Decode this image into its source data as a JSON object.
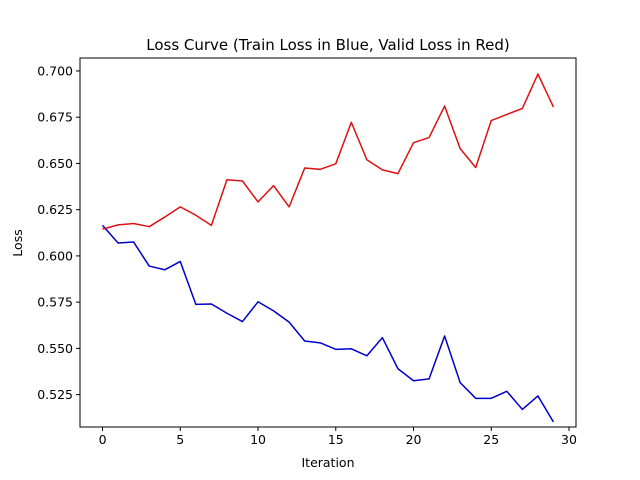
{
  "chart_data": {
    "type": "line",
    "title": "Loss Curve (Train Loss in Blue, Valid Loss in Red)",
    "xlabel": "Iteration",
    "ylabel": "Loss",
    "xlim": [
      -1.45,
      30.45
    ],
    "ylim": [
      0.5075,
      0.707
    ],
    "xticks": [
      0,
      5,
      10,
      15,
      20,
      25,
      30
    ],
    "yticks": [
      0.525,
      0.55,
      0.575,
      0.6,
      0.625,
      0.65,
      0.675,
      0.7
    ],
    "xtick_labels": [
      "0",
      "5",
      "10",
      "15",
      "20",
      "25",
      "30"
    ],
    "ytick_labels": [
      "0.525",
      "0.550",
      "0.575",
      "0.600",
      "0.625",
      "0.650",
      "0.675",
      "0.700"
    ],
    "grid": false,
    "x": [
      0,
      1,
      2,
      3,
      4,
      5,
      6,
      7,
      8,
      9,
      10,
      11,
      12,
      13,
      14,
      15,
      16,
      17,
      18,
      19,
      20,
      21,
      22,
      23,
      24,
      25,
      26,
      27,
      28,
      29
    ],
    "series": [
      {
        "name": "Train Loss",
        "color": "#0000cc",
        "values": [
          0.6165,
          0.607,
          0.6075,
          0.5945,
          0.5925,
          0.597,
          0.5738,
          0.574,
          0.569,
          0.5645,
          0.5752,
          0.5703,
          0.5642,
          0.554,
          0.553,
          0.5495,
          0.5498,
          0.546,
          0.5558,
          0.539,
          0.5325,
          0.5335,
          0.5567,
          0.5315,
          0.523,
          0.523,
          0.5268,
          0.517,
          0.5243,
          0.5102
        ]
      },
      {
        "name": "Valid Loss",
        "color": "#dd1111",
        "values": [
          0.6145,
          0.6168,
          0.6175,
          0.6158,
          0.621,
          0.6265,
          0.622,
          0.6165,
          0.6412,
          0.6405,
          0.6292,
          0.638,
          0.6265,
          0.6475,
          0.6468,
          0.6498,
          0.6722,
          0.652,
          0.6465,
          0.6445,
          0.6612,
          0.664,
          0.681,
          0.658,
          0.6478,
          0.6732,
          0.6765,
          0.6797,
          0.6983,
          0.6805
        ]
      }
    ]
  }
}
